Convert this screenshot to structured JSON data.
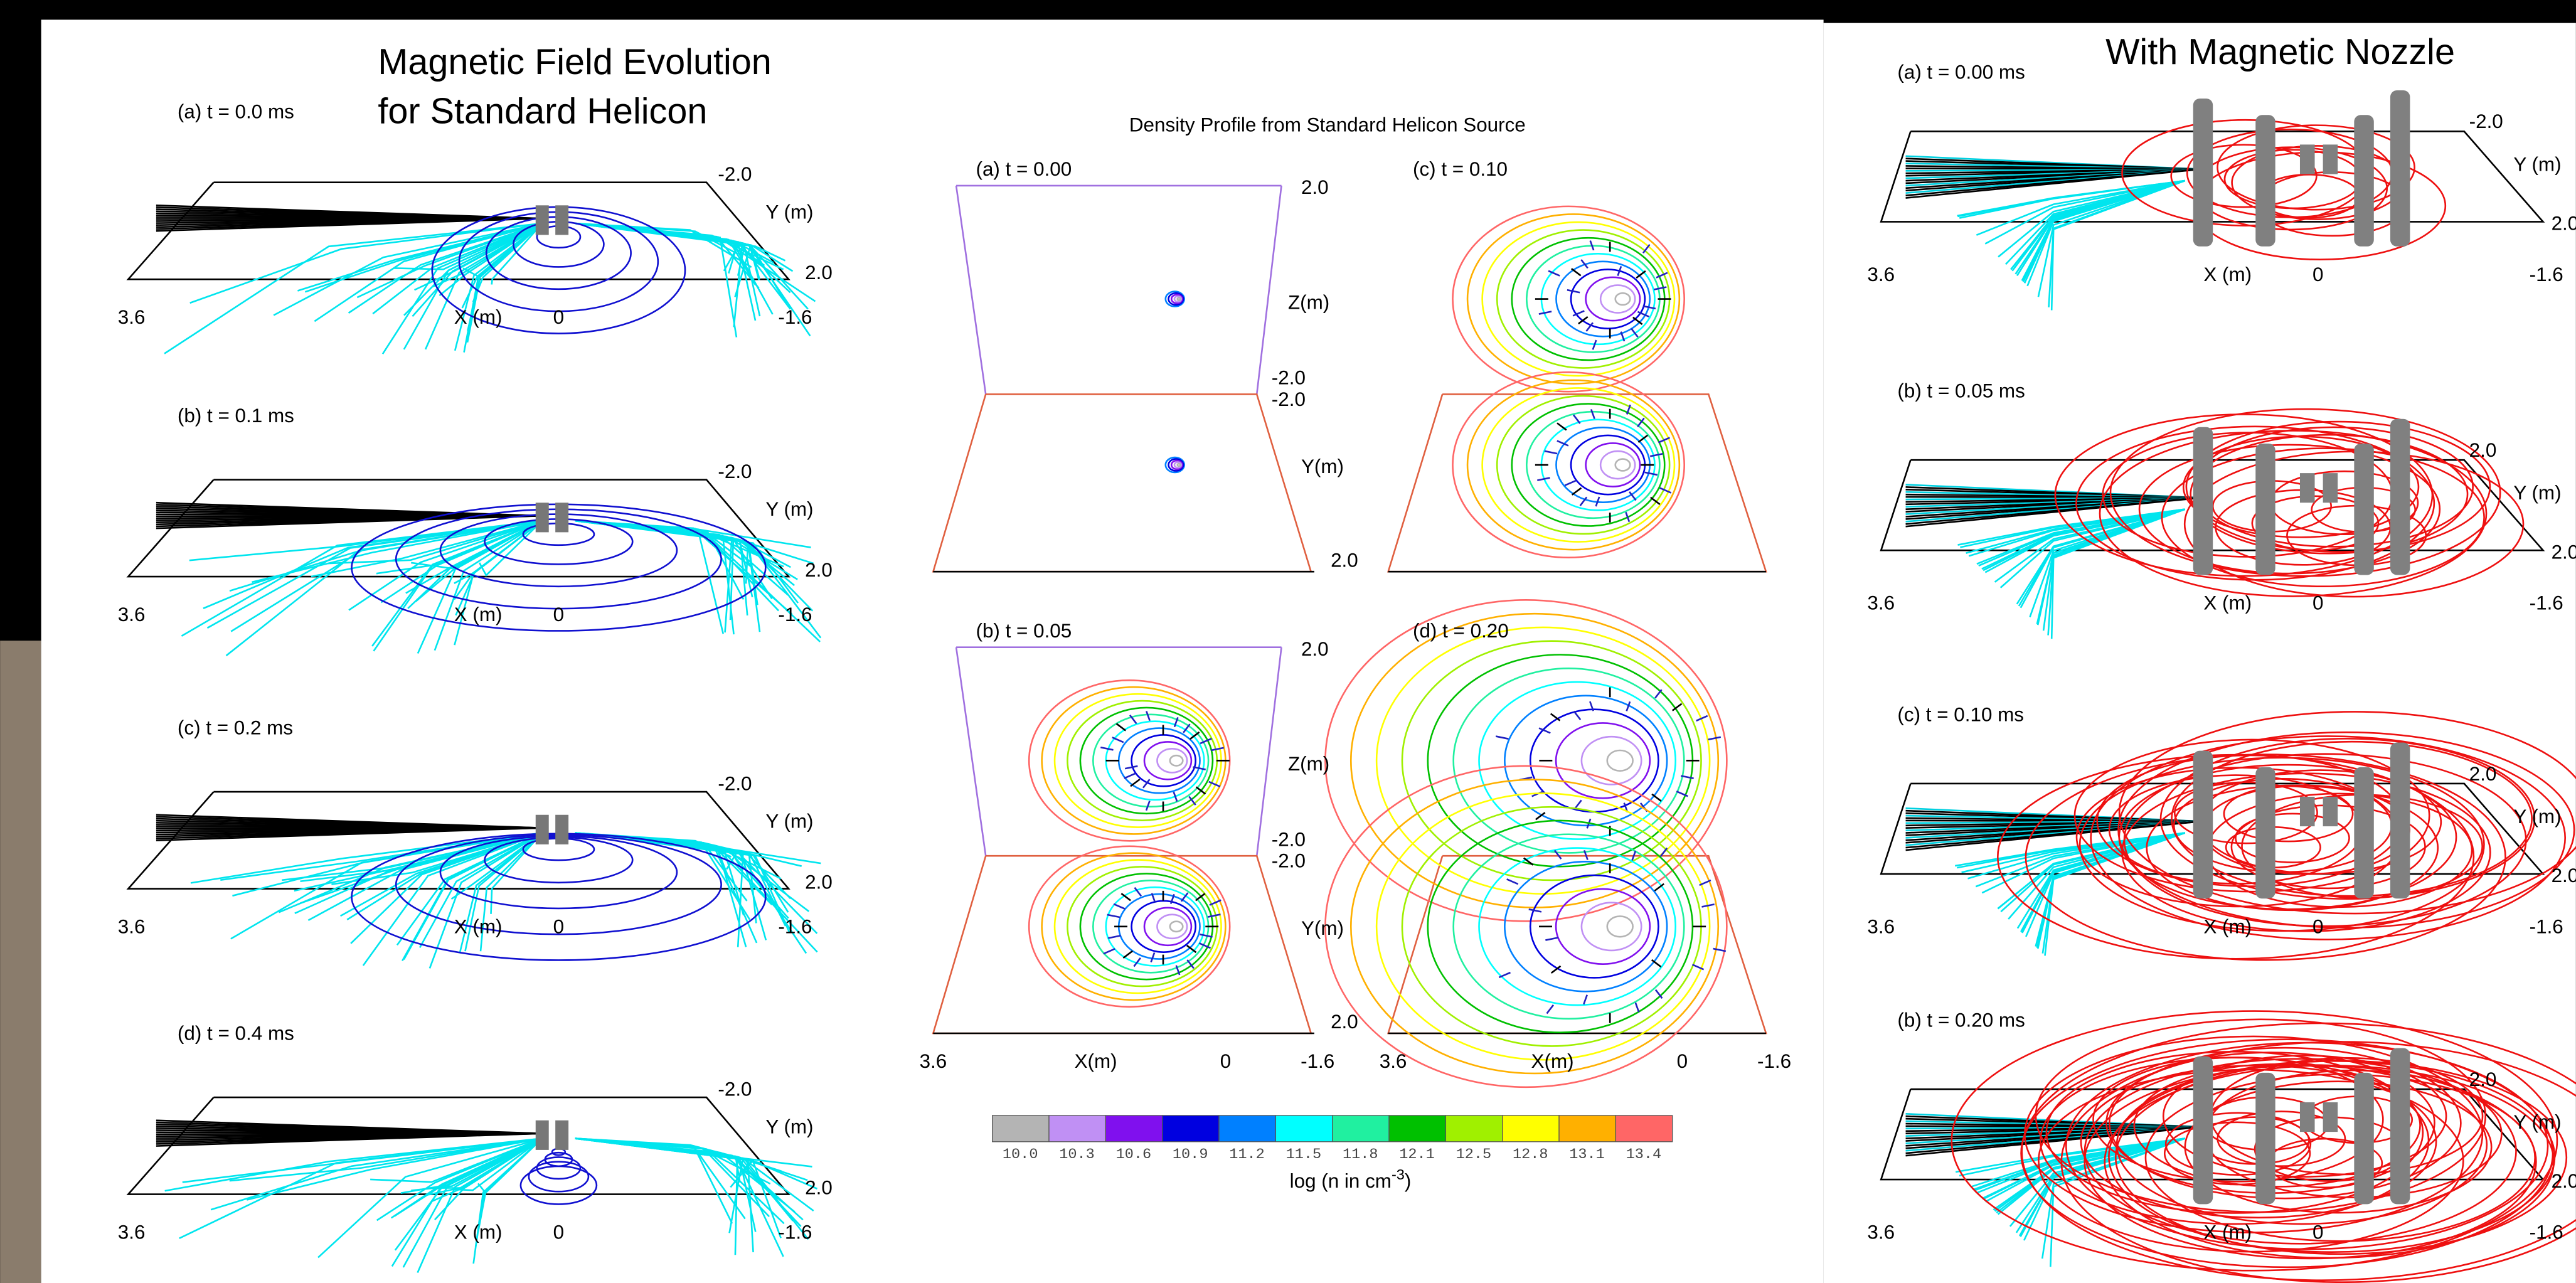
{
  "left": {
    "title": [
      "Magnetic Field Evolution",
      "for Standard Helicon"
    ],
    "panels": [
      {
        "label": "(a) t = 0.0 ms",
        "axis": [
          "-2.0",
          "Y (m)",
          "2.0",
          "3.6",
          "X (m)",
          "0",
          "-1.6"
        ]
      },
      {
        "label": "(b) t = 0.1 ms",
        "axis": [
          "-2.0",
          "Y (m)",
          "2.0",
          "3.6",
          "X (m)",
          "0",
          "-1.6"
        ]
      },
      {
        "label": "(c) t = 0.2 ms",
        "axis": [
          "-2.0",
          "Y (m)",
          "2.0",
          "3.6",
          "X (m)",
          "0",
          "-1.6"
        ]
      },
      {
        "label": "(d) t = 0.4 ms",
        "axis": [
          "-2.0",
          "Y (m)",
          "2.0",
          "3.6",
          "X (m)",
          "0",
          "-1.6"
        ]
      }
    ]
  },
  "middle": {
    "title": "Density Profile from Standard Helicon Source",
    "panels": [
      {
        "label": "(a) t = 0.00",
        "axis": [
          "2.0",
          "Z(m)",
          "-2.0",
          "-2.0",
          "Y(m)",
          "2.0"
        ]
      },
      {
        "label": "(c) t = 0.10"
      },
      {
        "label": "(b) t = 0.05",
        "axis": [
          "2.0",
          "Z(m)",
          "-2.0",
          "-2.0",
          "Y(m)",
          "2.0"
        ]
      },
      {
        "label": "(d) t = 0.20"
      }
    ],
    "x_axes": [
      [
        "3.6",
        "X(m)",
        "0",
        "-1.6"
      ],
      [
        "3.6",
        "X(m)",
        "0",
        "-1.6"
      ]
    ],
    "colorbar": {
      "labels": [
        "10.0",
        "10.3",
        "10.6",
        "10.9",
        "11.2",
        "11.5",
        "11.8",
        "12.1",
        "12.5",
        "12.8",
        "13.1",
        "13.4"
      ],
      "caption": "log (n in cm",
      "caption_sup": "-3",
      "caption_end": ")"
    }
  },
  "right": {
    "title": "With Magnetic Nozzle",
    "panels": [
      {
        "label": "(a) t = 0.00 ms",
        "axis": [
          "-2.0",
          "Y (m)",
          "2.0",
          "3.6",
          "X (m)",
          "0",
          "-1.6"
        ]
      },
      {
        "label": "(b) t = 0.05 ms",
        "axis": [
          "2.0",
          "Y (m)",
          "2.0",
          "3.6",
          "X (m)",
          "0",
          "-1.6"
        ]
      },
      {
        "label": "(c) t = 0.10 ms",
        "axis": [
          "2.0",
          "Y (m)",
          "2.0",
          "3.6",
          "X (m)",
          "0",
          "-1.6"
        ]
      },
      {
        "label": "(b) t = 0.20 ms",
        "axis": [
          "2.0",
          "Y (m)",
          "2.0",
          "3.6",
          "X (m)",
          "0",
          "-1.6"
        ]
      }
    ]
  }
}
